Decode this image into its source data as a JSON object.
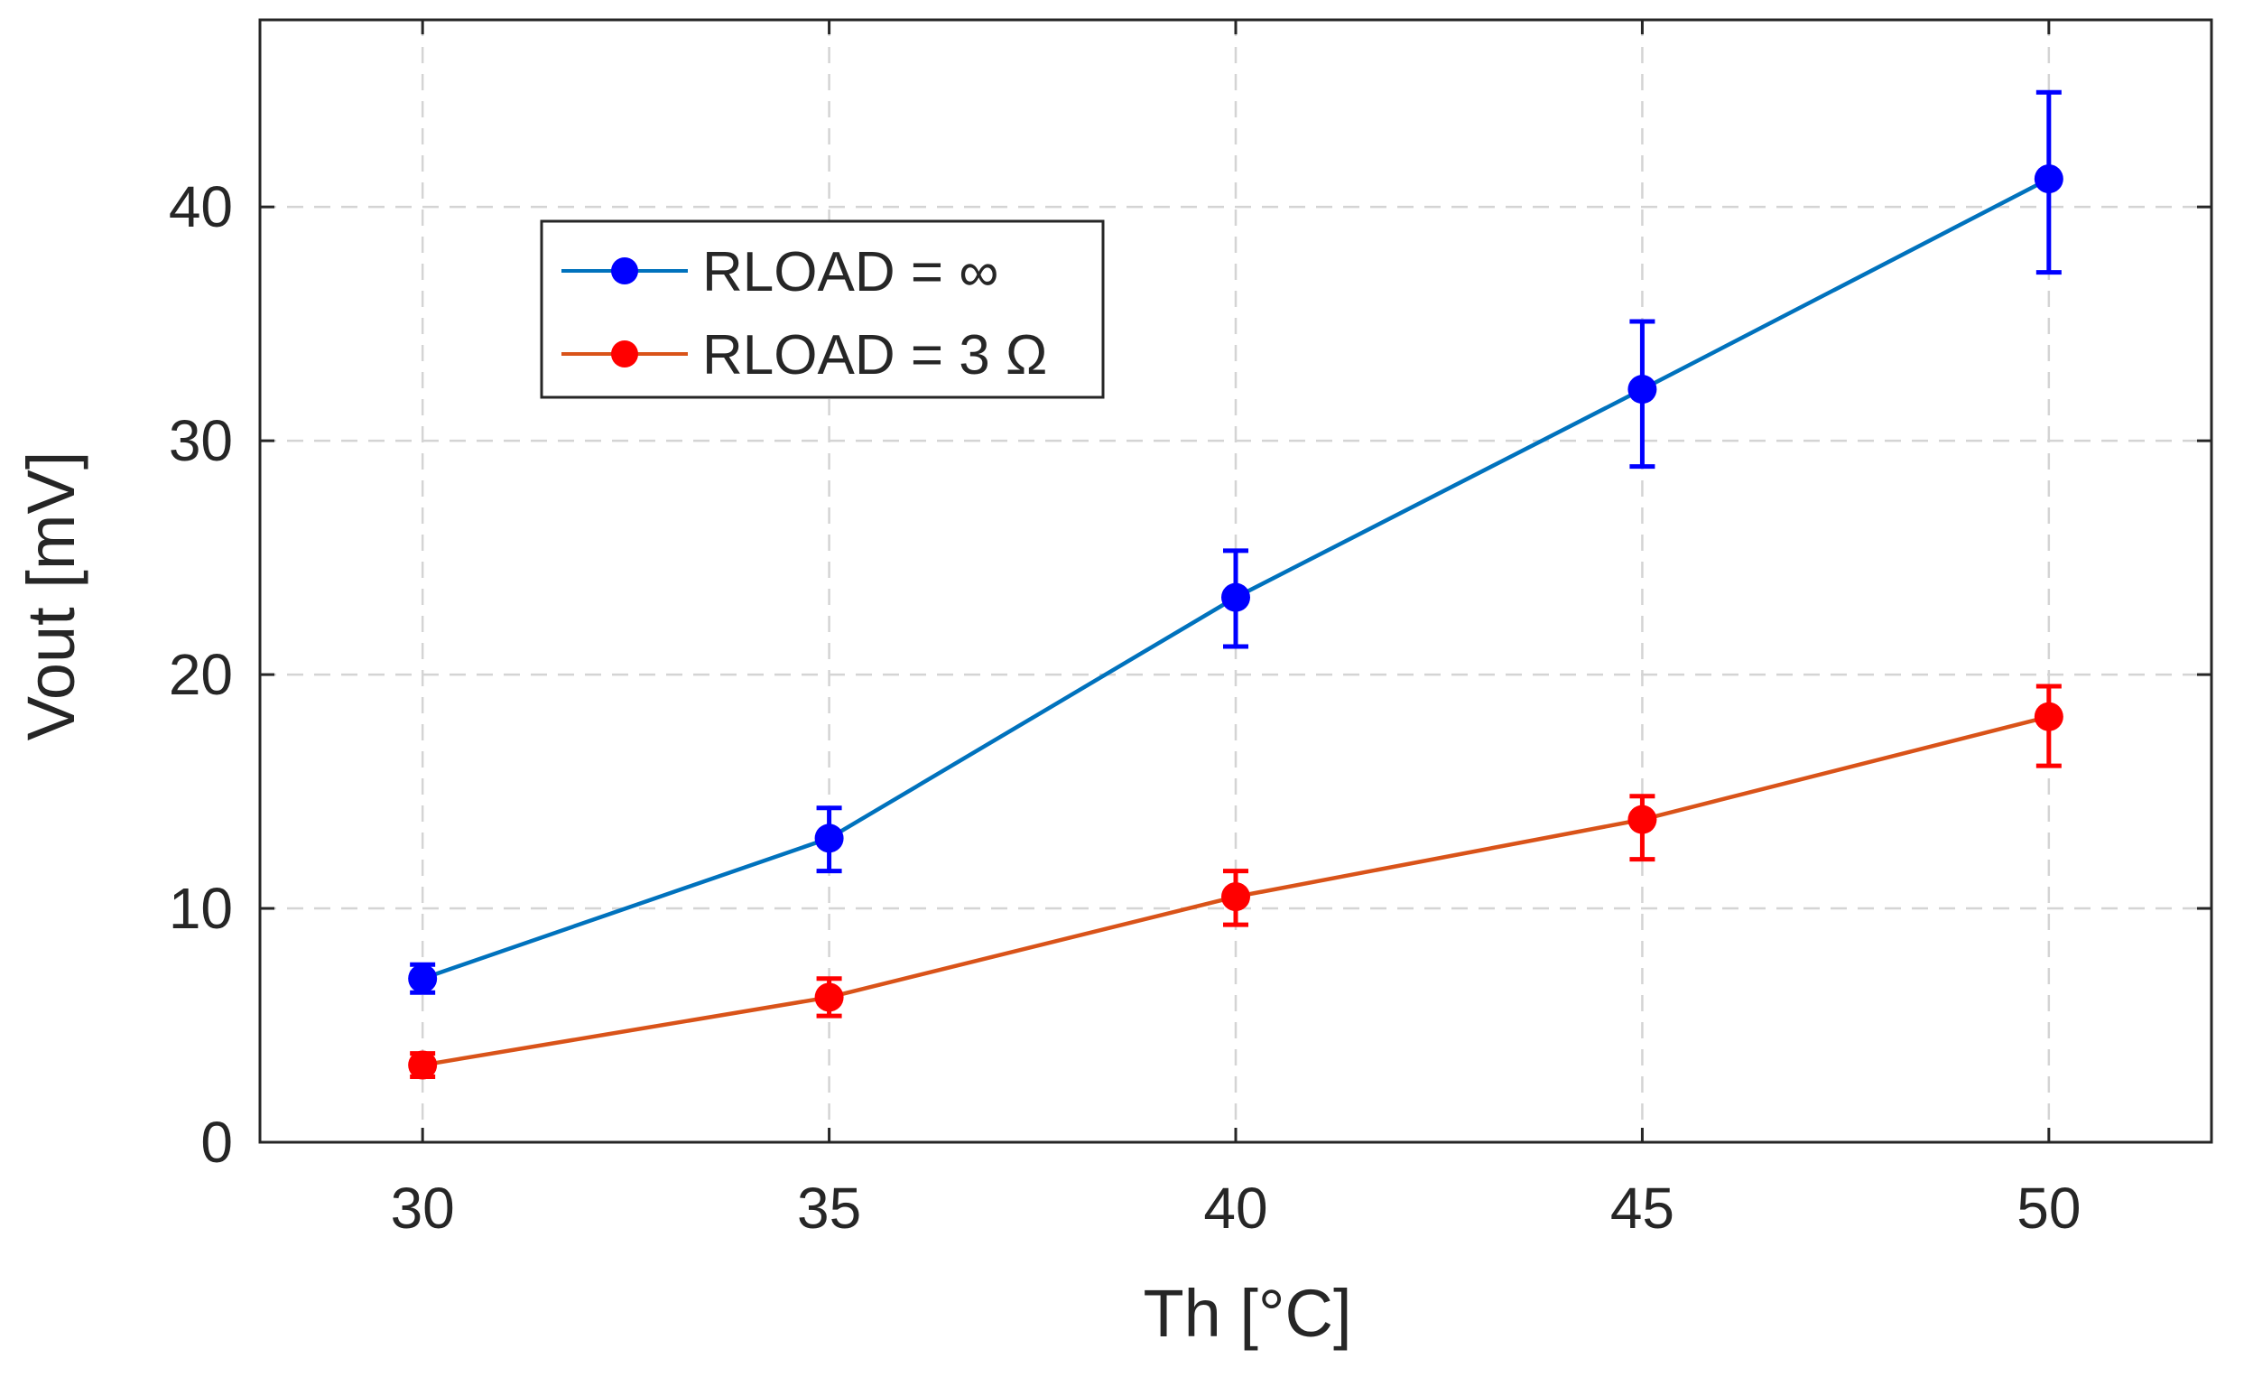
{
  "chart_data": {
    "type": "line",
    "title": "",
    "xlabel": "Th [°C]",
    "ylabel": "Vout [mV]",
    "xlim": [
      28,
      52
    ],
    "ylim": [
      0,
      48
    ],
    "x": [
      30,
      35,
      40,
      45,
      50
    ],
    "x_ticks": [
      30,
      35,
      40,
      45,
      50
    ],
    "x_tick_labels": [
      "30",
      "35",
      "40",
      "45",
      "50"
    ],
    "y_ticks": [
      0,
      10,
      20,
      30,
      40
    ],
    "y_tick_labels": [
      "0",
      "10",
      "20",
      "30",
      "40"
    ],
    "grid": true,
    "legend_position": "upper-left",
    "series": [
      {
        "name": "RLOAD = ∞",
        "line_color": "#0072BD",
        "marker_color": "#0000FF",
        "values": [
          7.0,
          13.0,
          23.3,
          32.2,
          41.2
        ],
        "error_low": [
          6.4,
          11.6,
          21.2,
          28.9,
          37.2
        ],
        "error_high": [
          7.6,
          14.3,
          25.3,
          35.1,
          44.9
        ]
      },
      {
        "name": "RLOAD = 3 Ω",
        "line_color": "#D95319",
        "marker_color": "#FF0000",
        "values": [
          3.3,
          6.2,
          10.5,
          13.8,
          18.2
        ],
        "error_low": [
          2.8,
          5.4,
          9.3,
          12.1,
          16.1
        ],
        "error_high": [
          3.8,
          7.0,
          11.6,
          14.8,
          19.5
        ]
      }
    ]
  }
}
